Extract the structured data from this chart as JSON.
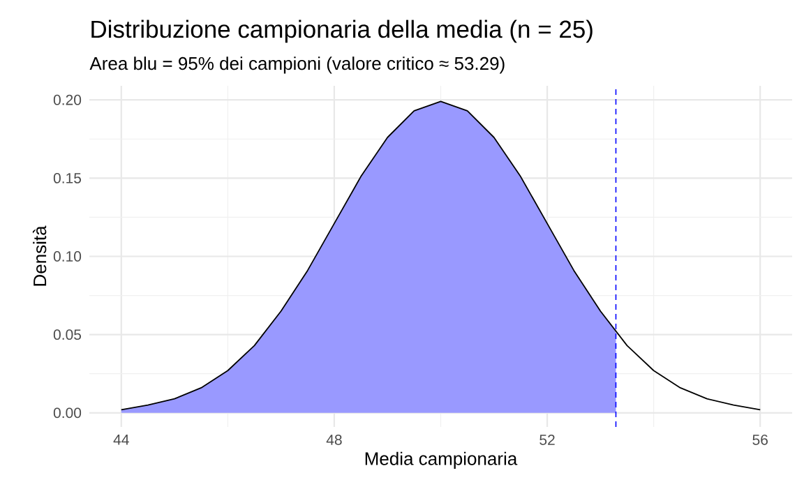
{
  "chart_data": {
    "type": "line",
    "title": "Distribuzione campionaria della media (n = 25)",
    "subtitle": "Area blu = 95% dei campioni (valore critico ≈ 53.29)",
    "xlabel": "Media campionaria",
    "ylabel": "Densità",
    "series": [
      {
        "type": "area",
        "color": "#9999ff",
        "x": [
          44,
          44.5,
          45,
          45.5,
          46,
          46.5,
          47,
          47.5,
          48,
          48.5,
          49,
          49.5,
          50,
          50.5,
          51,
          51.5,
          52,
          52.5,
          53,
          53.29
        ],
        "values": [
          0.002,
          0.005,
          0.009,
          0.016,
          0.027,
          0.043,
          0.065,
          0.091,
          0.121,
          0.151,
          0.176,
          0.193,
          0.199,
          0.193,
          0.176,
          0.151,
          0.121,
          0.091,
          0.065,
          0.052
        ]
      },
      {
        "color": "#000000",
        "x": [
          44,
          44.5,
          45,
          45.5,
          46,
          46.5,
          47,
          47.5,
          48,
          48.5,
          49,
          49.5,
          50,
          50.5,
          51,
          51.5,
          52,
          52.5,
          53,
          53.5,
          54,
          54.5,
          55,
          55.5,
          56
        ],
        "values": [
          0.002,
          0.005,
          0.009,
          0.016,
          0.027,
          0.043,
          0.065,
          0.091,
          0.121,
          0.151,
          0.176,
          0.193,
          0.199,
          0.193,
          0.176,
          0.151,
          0.121,
          0.091,
          0.065,
          0.043,
          0.027,
          0.016,
          0.009,
          0.005,
          0.002
        ]
      }
    ],
    "ref_lines": [
      {
        "axis": "x",
        "value": 53.29,
        "color": "#0000ff",
        "line_style": "dashed"
      }
    ],
    "xlim": [
      43.4,
      56.6
    ],
    "ylim": [
      -0.009,
      0.209
    ],
    "xticks": [
      44,
      48,
      52,
      56
    ],
    "yticks": [
      {
        "value": 0,
        "label": "0.00"
      },
      {
        "value": 0.05,
        "label": "0.05"
      },
      {
        "value": 0.1,
        "label": "0.10"
      },
      {
        "value": 0.15,
        "label": "0.15"
      },
      {
        "value": 0.2,
        "label": "0.20"
      }
    ],
    "grid": true
  }
}
